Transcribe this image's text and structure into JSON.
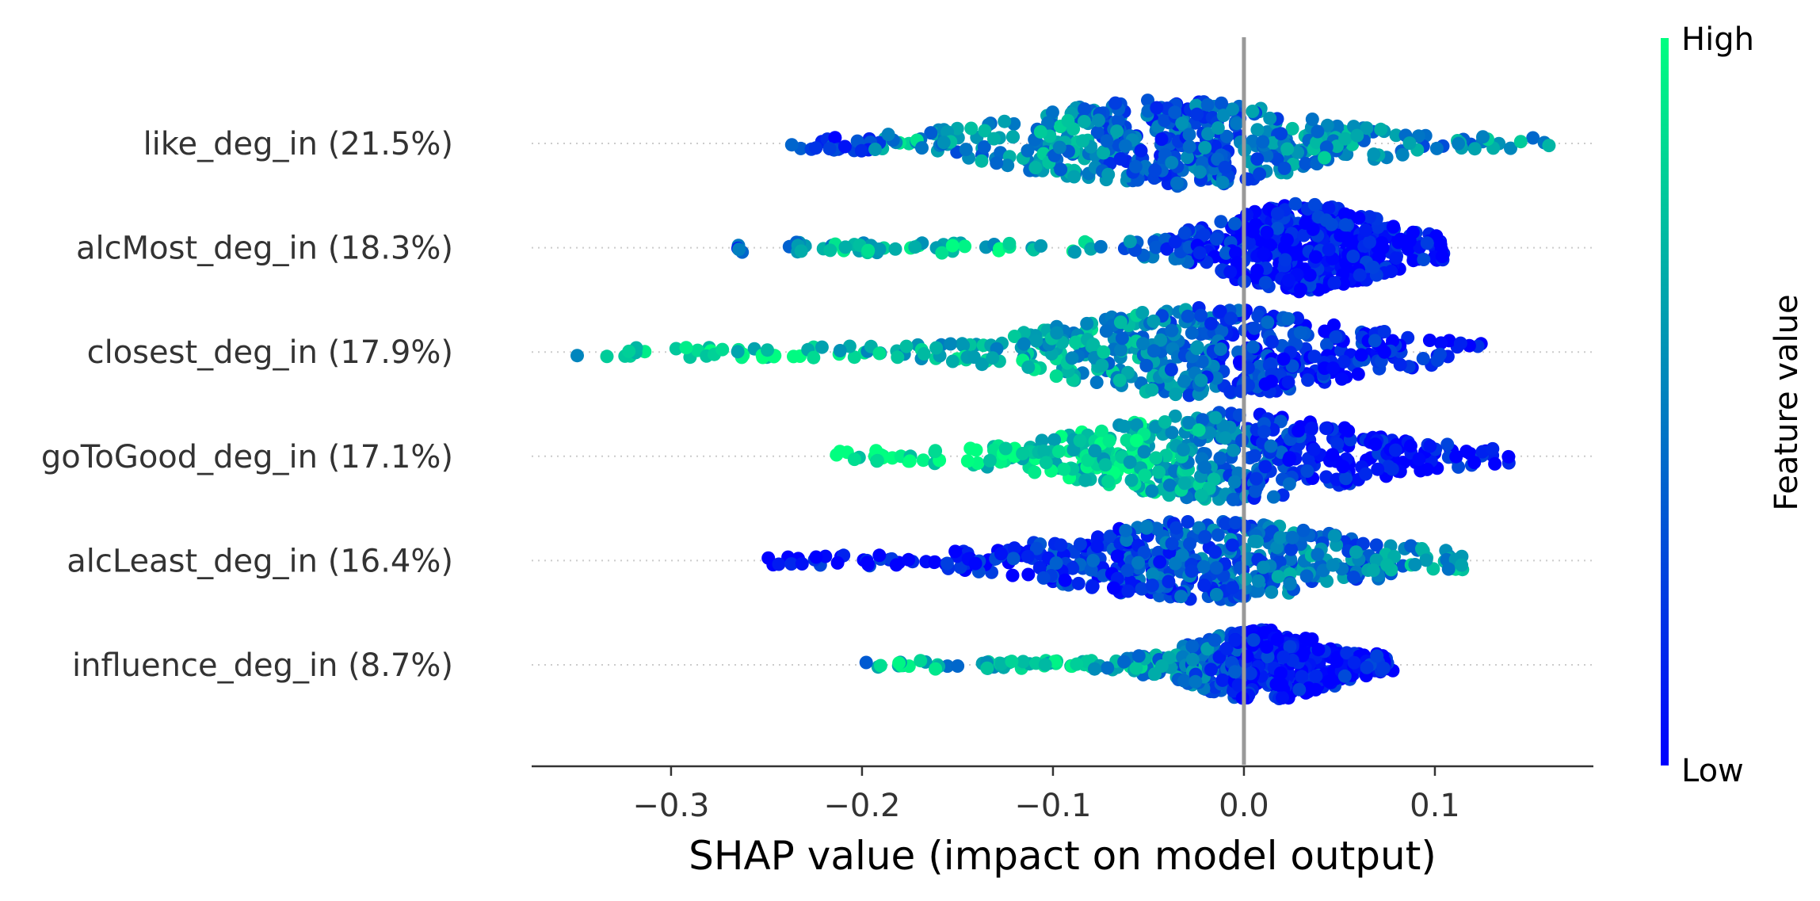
{
  "chart_data": {
    "type": "scatter",
    "subtype": "shap-beeswarm",
    "title": "",
    "xlabel": "SHAP value (impact on model output)",
    "ylabel": "",
    "xlim": [
      -0.373,
      0.183
    ],
    "xticks": [
      -0.3,
      -0.2,
      -0.1,
      0.0,
      0.1
    ],
    "xtick_labels": [
      "−0.3",
      "−0.2",
      "−0.1",
      "0.0",
      "0.1"
    ],
    "grid": false,
    "zero_line": 0.0,
    "colorbar": {
      "label": "Feature value",
      "high_label": "High",
      "low_label": "Low",
      "high_color": "#00ff80",
      "low_color": "#0000ff",
      "placement": "right"
    },
    "features": [
      {
        "label": "like_deg_in (21.5%)",
        "min": -0.24,
        "max": 0.16,
        "center": -0.04,
        "spread": 0.06,
        "max_halfwidth": 1.0,
        "color_mode": "mixed",
        "representative_points": [
          {
            "x": -0.24,
            "c": 0.4
          },
          {
            "x": -0.22,
            "c": 0.1
          },
          {
            "x": -0.2,
            "c": 0.2
          },
          {
            "x": -0.18,
            "c": 0.7
          },
          {
            "x": -0.15,
            "c": 0.5
          },
          {
            "x": -0.1,
            "c": 0.6
          },
          {
            "x": -0.05,
            "c": 0.3
          },
          {
            "x": 0.0,
            "c": 0.4
          },
          {
            "x": 0.05,
            "c": 0.6
          },
          {
            "x": 0.1,
            "c": 0.5
          },
          {
            "x": 0.14,
            "c": 0.6
          },
          {
            "x": 0.16,
            "c": 0.5
          }
        ]
      },
      {
        "label": "alcMost_deg_in (18.3%)",
        "min": -0.27,
        "max": 0.105,
        "center": 0.03,
        "spread": 0.035,
        "max_halfwidth": 1.0,
        "color_mode": "high-left",
        "representative_points": [
          {
            "x": -0.27,
            "c": 0.3
          },
          {
            "x": -0.25,
            "c": 0.3
          },
          {
            "x": -0.22,
            "c": 0.7
          },
          {
            "x": -0.18,
            "c": 0.7
          },
          {
            "x": -0.12,
            "c": 0.8
          },
          {
            "x": -0.07,
            "c": 0.6
          },
          {
            "x": -0.03,
            "c": 0.2
          },
          {
            "x": 0.0,
            "c": 0.1
          },
          {
            "x": 0.03,
            "c": 0.05
          },
          {
            "x": 0.06,
            "c": 0.05
          },
          {
            "x": 0.09,
            "c": 0.05
          },
          {
            "x": 0.105,
            "c": 0.05
          }
        ]
      },
      {
        "label": "closest_deg_in (17.9%)",
        "min": -0.35,
        "max": 0.125,
        "center": -0.02,
        "spread": 0.06,
        "max_halfwidth": 1.0,
        "color_mode": "high-left",
        "representative_points": [
          {
            "x": -0.35,
            "c": 0.4
          },
          {
            "x": -0.33,
            "c": 0.8
          },
          {
            "x": -0.3,
            "c": 0.9
          },
          {
            "x": -0.27,
            "c": 0.9
          },
          {
            "x": -0.23,
            "c": 0.8
          },
          {
            "x": -0.18,
            "c": 0.7
          },
          {
            "x": -0.12,
            "c": 0.7
          },
          {
            "x": -0.06,
            "c": 0.6
          },
          {
            "x": 0.0,
            "c": 0.2
          },
          {
            "x": 0.05,
            "c": 0.1
          },
          {
            "x": 0.1,
            "c": 0.1
          },
          {
            "x": 0.125,
            "c": 0.05
          }
        ]
      },
      {
        "label": "goToGood_deg_in (17.1%)",
        "min": -0.215,
        "max": 0.14,
        "center": -0.01,
        "spread": 0.055,
        "max_halfwidth": 1.0,
        "color_mode": "high-left",
        "representative_points": [
          {
            "x": -0.215,
            "c": 0.9
          },
          {
            "x": -0.18,
            "c": 0.9
          },
          {
            "x": -0.14,
            "c": 0.9
          },
          {
            "x": -0.1,
            "c": 0.85
          },
          {
            "x": -0.06,
            "c": 0.8
          },
          {
            "x": -0.02,
            "c": 0.6
          },
          {
            "x": 0.0,
            "c": 0.3
          },
          {
            "x": 0.04,
            "c": 0.1
          },
          {
            "x": 0.08,
            "c": 0.05
          },
          {
            "x": 0.11,
            "c": 0.05
          },
          {
            "x": 0.13,
            "c": 0.05
          },
          {
            "x": 0.14,
            "c": 0.05
          }
        ]
      },
      {
        "label": "alcLeast_deg_in (16.4%)",
        "min": -0.25,
        "max": 0.115,
        "center": -0.02,
        "spread": 0.06,
        "max_halfwidth": 0.9,
        "color_mode": "high-right",
        "representative_points": [
          {
            "x": -0.25,
            "c": 0.05
          },
          {
            "x": -0.22,
            "c": 0.05
          },
          {
            "x": -0.18,
            "c": 0.05
          },
          {
            "x": -0.13,
            "c": 0.1
          },
          {
            "x": -0.08,
            "c": 0.2
          },
          {
            "x": -0.04,
            "c": 0.3
          },
          {
            "x": 0.0,
            "c": 0.4
          },
          {
            "x": 0.03,
            "c": 0.5
          },
          {
            "x": 0.06,
            "c": 0.4
          },
          {
            "x": 0.09,
            "c": 0.6
          },
          {
            "x": 0.11,
            "c": 0.7
          },
          {
            "x": 0.115,
            "c": 0.7
          }
        ]
      },
      {
        "label": "influence_deg_in (8.7%)",
        "min": -0.2,
        "max": 0.078,
        "center": 0.01,
        "spread": 0.03,
        "max_halfwidth": 0.8,
        "color_mode": "high-left",
        "representative_points": [
          {
            "x": -0.2,
            "c": 0.4
          },
          {
            "x": -0.19,
            "c": 0.9
          },
          {
            "x": -0.15,
            "c": 0.6
          },
          {
            "x": -0.12,
            "c": 0.8
          },
          {
            "x": -0.08,
            "c": 0.7
          },
          {
            "x": -0.05,
            "c": 0.6
          },
          {
            "x": -0.02,
            "c": 0.4
          },
          {
            "x": 0.0,
            "c": 0.1
          },
          {
            "x": 0.02,
            "c": 0.05
          },
          {
            "x": 0.04,
            "c": 0.05
          },
          {
            "x": 0.06,
            "c": 0.05
          },
          {
            "x": 0.078,
            "c": 0.05
          }
        ]
      }
    ]
  }
}
